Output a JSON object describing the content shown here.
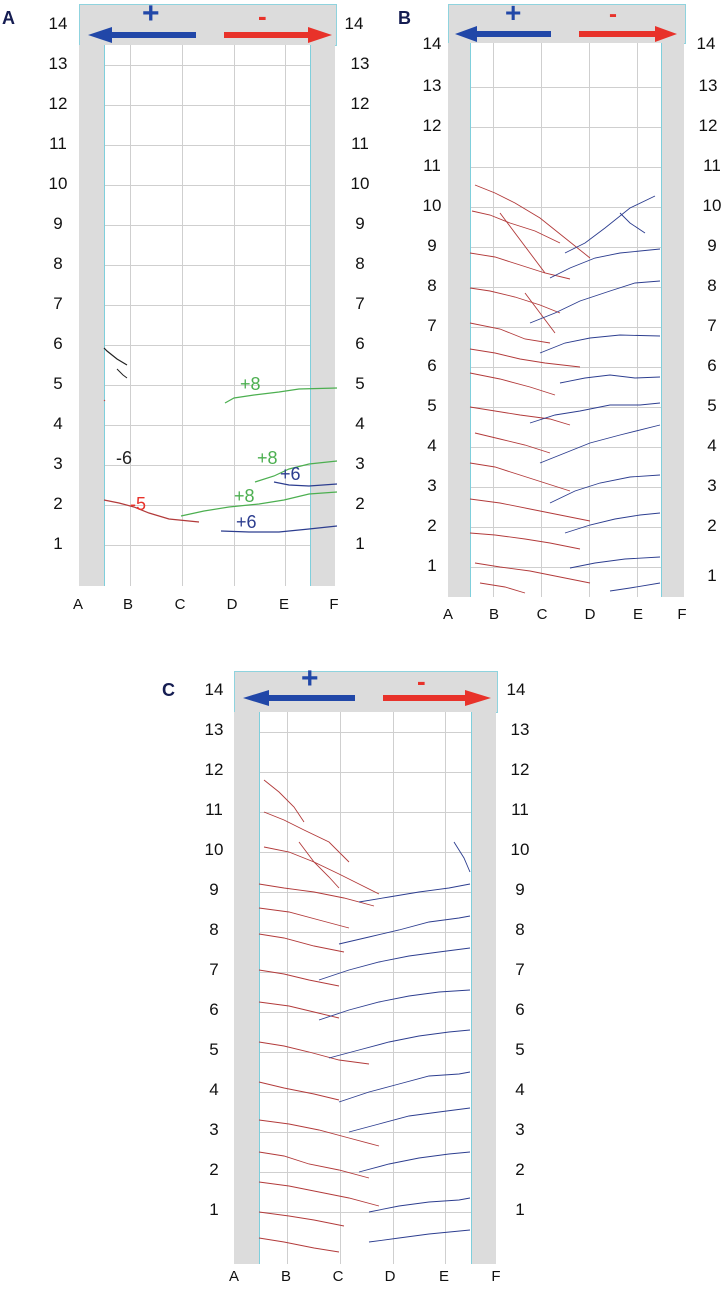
{
  "panels": {
    "a": {
      "letter": "A"
    },
    "b": {
      "letter": "B"
    },
    "c": {
      "letter": "C"
    }
  },
  "direction": {
    "plus": "+",
    "minus": "-"
  },
  "rows": [
    "1",
    "2",
    "3",
    "4",
    "5",
    "6",
    "7",
    "8",
    "9",
    "10",
    "11",
    "12",
    "13",
    "14"
  ],
  "columns": [
    "A",
    "B",
    "C",
    "D",
    "E",
    "F"
  ],
  "annotations_a": [
    "-6",
    "-5",
    "+8",
    "+8",
    "+8",
    "+6",
    "+6"
  ],
  "colors": {
    "plus_arrow": "#2147a8",
    "minus_arrow": "#e8322a",
    "crack_red": "#b23a3a",
    "crack_blue": "#2c3d8f",
    "crack_green": "#4caf50",
    "crack_black": "#222222",
    "grid": "#cfcfcf",
    "frame": "#7fcfdc"
  }
}
